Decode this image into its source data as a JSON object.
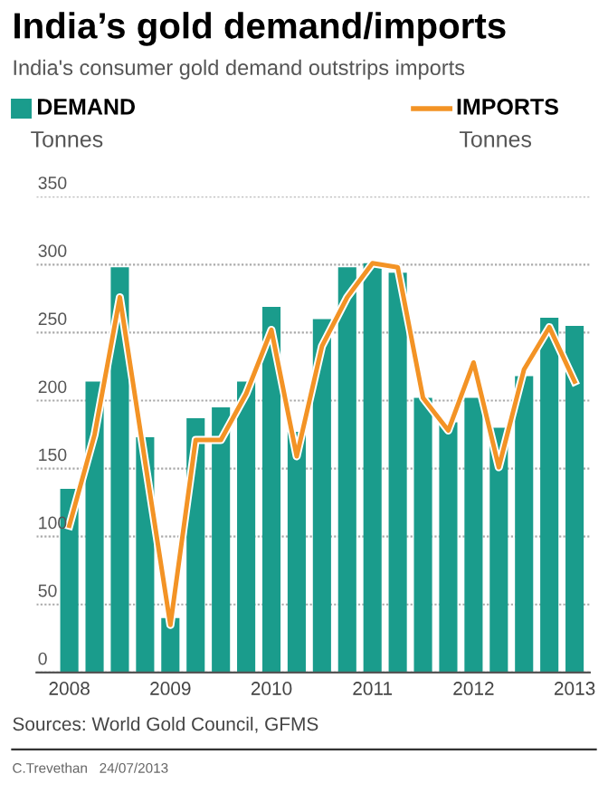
{
  "chart_data": {
    "type": "bar",
    "title": "India’s gold demand/imports",
    "subtitle": "India's consumer gold demand outstrips imports",
    "ylabel": "Tonnes",
    "categories": [
      "2008",
      null,
      null,
      null,
      "2009",
      null,
      null,
      null,
      "2010",
      null,
      null,
      null,
      "2011",
      null,
      null,
      null,
      "2012",
      null,
      null,
      null,
      "2013"
    ],
    "series": [
      {
        "name": "DEMAND",
        "color": "#1a9c8c",
        "values": [
          135,
          214,
          298,
          173,
          40,
          187,
          195,
          214,
          269,
          177,
          260,
          298,
          301,
          294,
          202,
          184,
          202,
          180,
          218,
          261,
          255
        ]
      },
      {
        "name": "IMPORTS",
        "type": "line",
        "color": "#f39325",
        "values": [
          108,
          175,
          276,
          155,
          35,
          171,
          171,
          205,
          252,
          159,
          240,
          276,
          301,
          298,
          202,
          178,
          228,
          151,
          223,
          254,
          214
        ]
      }
    ],
    "ylim": [
      0,
      350
    ],
    "yticks": [
      0,
      50,
      100,
      150,
      200,
      250,
      300,
      350
    ],
    "grid": "y",
    "legend": "top",
    "marker": "none",
    "line_style": "solid",
    "annotations": [
      "Tonnes",
      "Sources: World Gold Council, GFMS",
      "C.Trevethan   24/07/2013"
    ]
  }
}
